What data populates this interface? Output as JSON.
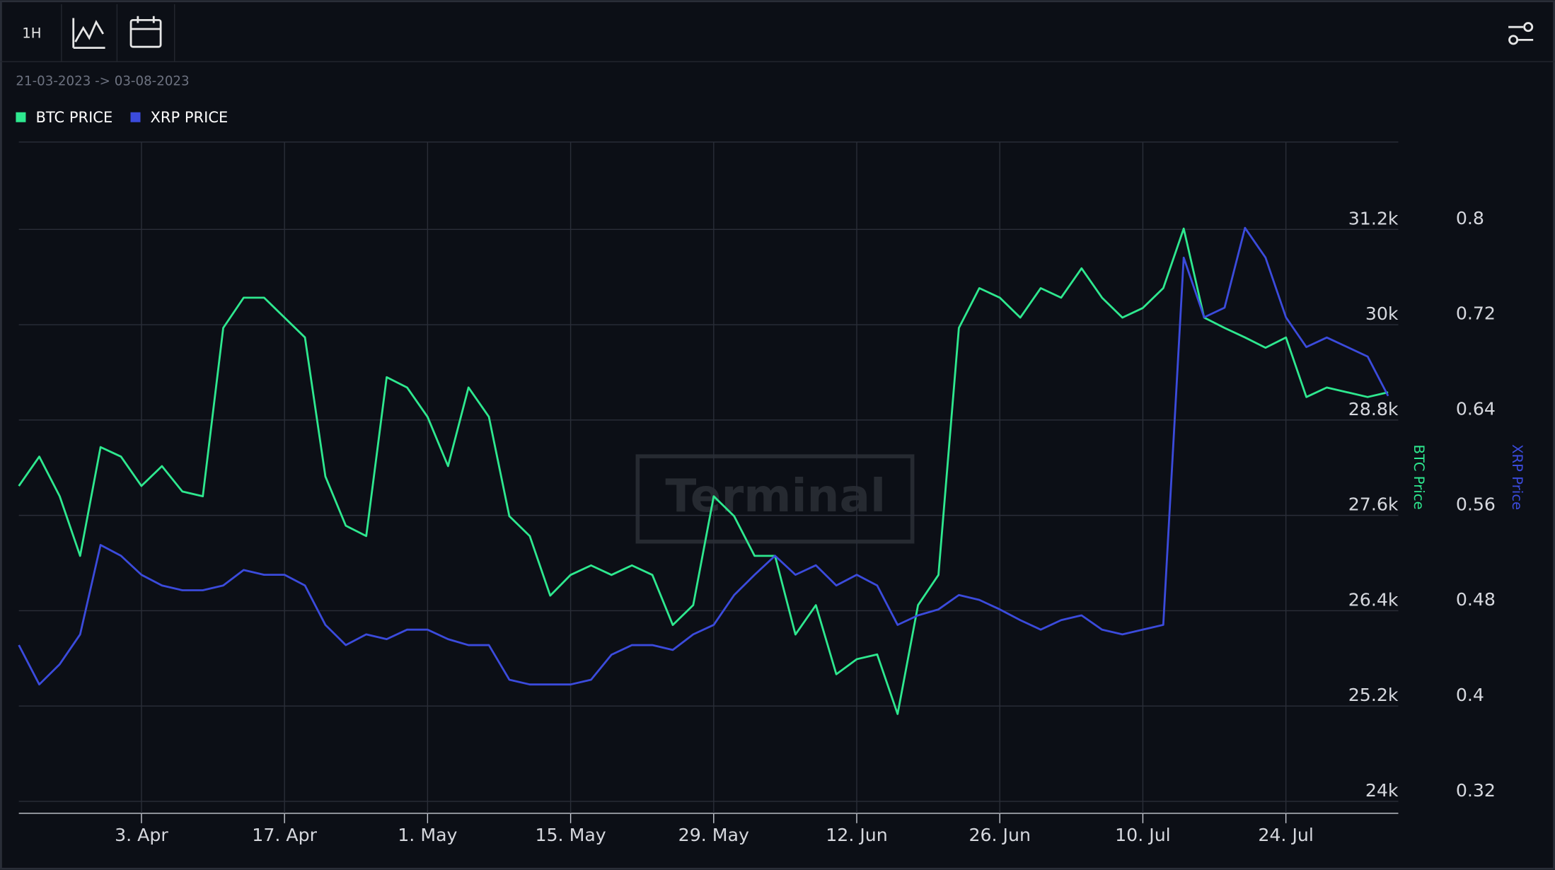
{
  "header": {
    "interval": "1H",
    "date_range": "21-03-2023 -> 03-08-2023"
  },
  "watermark": "Terminal",
  "chart_data": {
    "type": "line",
    "x": [
      "2023-03-22",
      "2023-03-24",
      "2023-03-26",
      "2023-03-28",
      "2023-03-30",
      "2023-04-01",
      "2023-04-03",
      "2023-04-05",
      "2023-04-07",
      "2023-04-09",
      "2023-04-11",
      "2023-04-13",
      "2023-04-15",
      "2023-04-17",
      "2023-04-19",
      "2023-04-21",
      "2023-04-23",
      "2023-04-25",
      "2023-04-27",
      "2023-04-29",
      "2023-05-01",
      "2023-05-03",
      "2023-05-05",
      "2023-05-07",
      "2023-05-09",
      "2023-05-11",
      "2023-05-13",
      "2023-05-15",
      "2023-05-17",
      "2023-05-19",
      "2023-05-21",
      "2023-05-23",
      "2023-05-25",
      "2023-05-27",
      "2023-05-29",
      "2023-05-31",
      "2023-06-02",
      "2023-06-04",
      "2023-06-06",
      "2023-06-08",
      "2023-06-10",
      "2023-06-12",
      "2023-06-14",
      "2023-06-16",
      "2023-06-18",
      "2023-06-20",
      "2023-06-22",
      "2023-06-24",
      "2023-06-26",
      "2023-06-28",
      "2023-06-30",
      "2023-07-02",
      "2023-07-04",
      "2023-07-06",
      "2023-07-08",
      "2023-07-10",
      "2023-07-12",
      "2023-07-14",
      "2023-07-16",
      "2023-07-18",
      "2023-07-20",
      "2023-07-22",
      "2023-07-24",
      "2023-07-26",
      "2023-07-28",
      "2023-07-30",
      "2023-08-01",
      "2023-08-03"
    ],
    "series": [
      {
        "name": "BTC PRICE",
        "color": "#2ee88f",
        "axis": "y",
        "values": [
          27970,
          28340,
          27840,
          27090,
          28460,
          28340,
          27970,
          28220,
          27900,
          27840,
          29960,
          30340,
          30340,
          30090,
          29840,
          28090,
          27470,
          27340,
          29340,
          29210,
          28840,
          28220,
          29210,
          28840,
          27590,
          27340,
          26590,
          26850,
          26970,
          26850,
          26970,
          26850,
          26220,
          26470,
          27840,
          27590,
          27090,
          27090,
          26100,
          26470,
          25600,
          25790,
          25850,
          25100,
          26470,
          26850,
          29960,
          30460,
          30340,
          30090,
          30460,
          30340,
          30710,
          30340,
          30090,
          30210,
          30460,
          31210,
          30090,
          29960,
          29840,
          29710,
          29840,
          29090,
          29210,
          29150,
          29090,
          29150
        ]
      },
      {
        "name": "XRP PRICE",
        "color": "#3b4bdc",
        "axis": "y2",
        "values": [
          0.451,
          0.418,
          0.435,
          0.46,
          0.535,
          0.526,
          0.51,
          0.501,
          0.497,
          0.497,
          0.501,
          0.514,
          0.51,
          0.51,
          0.501,
          0.468,
          0.451,
          0.46,
          0.456,
          0.464,
          0.464,
          0.456,
          0.451,
          0.451,
          0.422,
          0.418,
          0.418,
          0.418,
          0.422,
          0.443,
          0.451,
          0.451,
          0.447,
          0.46,
          0.468,
          0.493,
          0.51,
          0.526,
          0.51,
          0.518,
          0.501,
          0.51,
          0.501,
          0.468,
          0.476,
          0.481,
          0.493,
          0.489,
          0.481,
          0.472,
          0.464,
          0.472,
          0.476,
          0.464,
          0.46,
          0.464,
          0.468,
          0.776,
          0.726,
          0.734,
          0.801,
          0.776,
          0.726,
          0.701,
          0.709,
          0.701,
          0.693,
          0.66
        ]
      }
    ],
    "xlim": [
      "2023-03-22",
      "2023-08-04"
    ],
    "xticks": [
      {
        "value": "2023-04-03",
        "label": "3. Apr"
      },
      {
        "value": "2023-04-17",
        "label": "17. Apr"
      },
      {
        "value": "2023-05-01",
        "label": "1. May"
      },
      {
        "value": "2023-05-15",
        "label": "15. May"
      },
      {
        "value": "2023-05-29",
        "label": "29. May"
      },
      {
        "value": "2023-06-12",
        "label": "12. Jun"
      },
      {
        "value": "2023-06-26",
        "label": "26. Jun"
      },
      {
        "value": "2023-07-10",
        "label": "10. Jul"
      },
      {
        "value": "2023-07-24",
        "label": "24. Jul"
      }
    ],
    "ylabel": "BTC Price",
    "ylim": [
      23850,
      32300
    ],
    "yticks": [
      {
        "value": 24000,
        "label": "24k"
      },
      {
        "value": 25200,
        "label": "25.2k"
      },
      {
        "value": 26400,
        "label": "26.4k"
      },
      {
        "value": 27600,
        "label": "27.6k"
      },
      {
        "value": 28800,
        "label": "28.8k"
      },
      {
        "value": 30000,
        "label": "30k"
      },
      {
        "value": 31200,
        "label": "31.2k"
      }
    ],
    "y2label": "XRP Price",
    "y2lim": [
      0.31,
      0.873
    ],
    "y2ticks": [
      0.32,
      0.4,
      0.48,
      0.56,
      0.64,
      0.72,
      0.8
    ],
    "grid": true
  }
}
